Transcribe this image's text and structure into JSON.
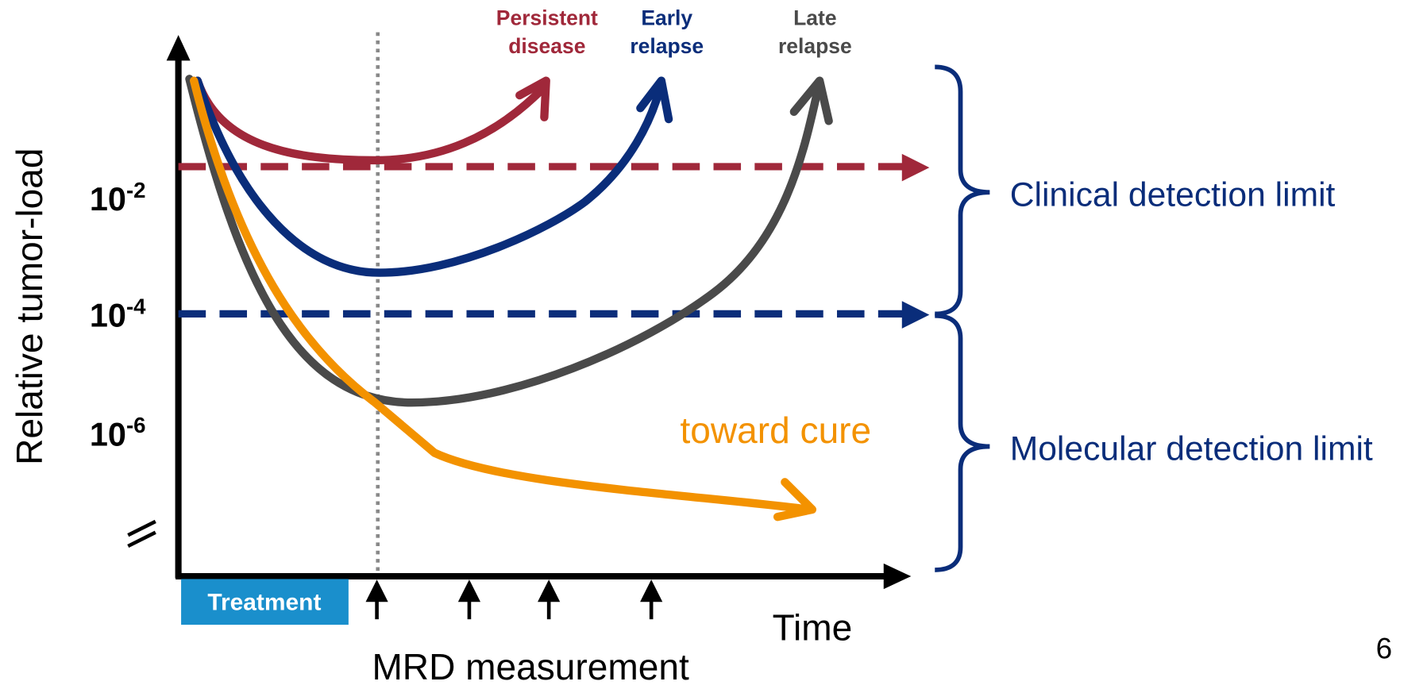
{
  "y_axis": {
    "title": "Relative tumor-load",
    "ticks": [
      {
        "base": "10",
        "exponent": "-2"
      },
      {
        "base": "10",
        "exponent": "-4"
      },
      {
        "base": "10",
        "exponent": "-6"
      }
    ]
  },
  "x_axis": {
    "title": "Time"
  },
  "curve_labels": [
    {
      "lines": [
        "Persistent",
        "disease"
      ]
    },
    {
      "lines": [
        "Early",
        "relapse"
      ]
    },
    {
      "lines": [
        "Late",
        "relapse"
      ]
    }
  ],
  "cure_label": "toward cure",
  "limits": [
    "Clinical detection limit",
    "Molecular detection limit"
  ],
  "treatment_label": "Treatment",
  "mrd_label": "MRD measurement",
  "page_number": "6"
}
